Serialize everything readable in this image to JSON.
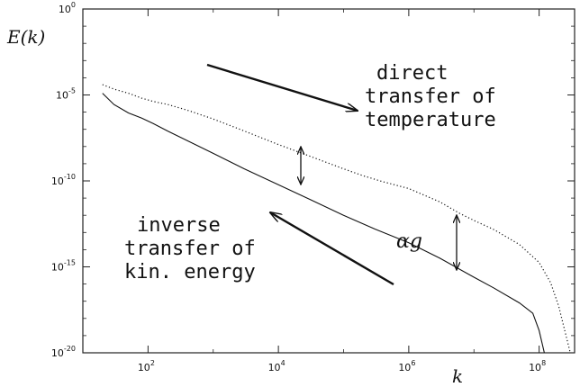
{
  "chart_data": {
    "type": "line",
    "xlabel": "k",
    "ylabel": "E(k)",
    "x_scale": "log",
    "y_scale": "log",
    "xlim": [
      10,
      350000000.0
    ],
    "ylim": [
      1e-20,
      1
    ],
    "x_ticks": [
      {
        "value": 100,
        "base": "10",
        "exp": "2"
      },
      {
        "value": 10000,
        "base": "10",
        "exp": "4"
      },
      {
        "value": 1000000,
        "base": "10",
        "exp": "6"
      },
      {
        "value": 100000000,
        "base": "10",
        "exp": "8"
      }
    ],
    "y_ticks": [
      {
        "value": 1,
        "base": "10",
        "exp": "0"
      },
      {
        "value": 1e-05,
        "base": "10",
        "exp": "-5"
      },
      {
        "value": 1e-10,
        "base": "10",
        "exp": "-10"
      },
      {
        "value": 1e-15,
        "base": "10",
        "exp": "-15"
      },
      {
        "value": 1e-20,
        "base": "10",
        "exp": "-20"
      }
    ],
    "series": [
      {
        "style": "dotted",
        "x": [
          20,
          30,
          50,
          80,
          120,
          200,
          400,
          1000,
          3000,
          10000,
          30000,
          100000,
          200000,
          400000,
          1000000,
          3000000,
          6000000,
          10000000,
          20000000,
          50000000,
          100000000,
          150000000,
          200000000,
          300000000
        ],
        "y": [
          4e-05,
          2.2e-05,
          1.25e-05,
          6.5e-06,
          4.2e-06,
          2.8e-06,
          1.3e-06,
          4e-07,
          8e-08,
          1.3e-08,
          2.8e-09,
          5e-10,
          2e-10,
          9e-11,
          3.6e-11,
          6e-12,
          1.3e-12,
          5e-13,
          1.5e-13,
          2e-14,
          1.8e-15,
          1.2e-16,
          5e-18,
          1e-20
        ]
      },
      {
        "style": "solid",
        "x": [
          20,
          30,
          50,
          80,
          120,
          200,
          400,
          1000,
          3000,
          10000,
          30000,
          100000,
          300000,
          1000000,
          3000000,
          10000000,
          20000000,
          50000000,
          80000000,
          100000000,
          120000000
        ],
        "y": [
          1.25e-05,
          2.8e-06,
          9e-07,
          4.5e-07,
          2.2e-07,
          8e-08,
          2.2e-08,
          4e-09,
          5e-10,
          6e-11,
          8.5e-12,
          1e-12,
          1.6e-13,
          2.5e-14,
          3.2e-15,
          2.5e-16,
          6e-17,
          8e-18,
          2e-18,
          2e-19,
          1e-20
        ]
      }
    ],
    "annotations": {
      "direct": [
        "direct",
        "transfer of",
        "temperature"
      ],
      "inverse": [
        "inverse",
        "transfer of",
        "kin. energy"
      ],
      "alpha_g": "αg"
    }
  }
}
